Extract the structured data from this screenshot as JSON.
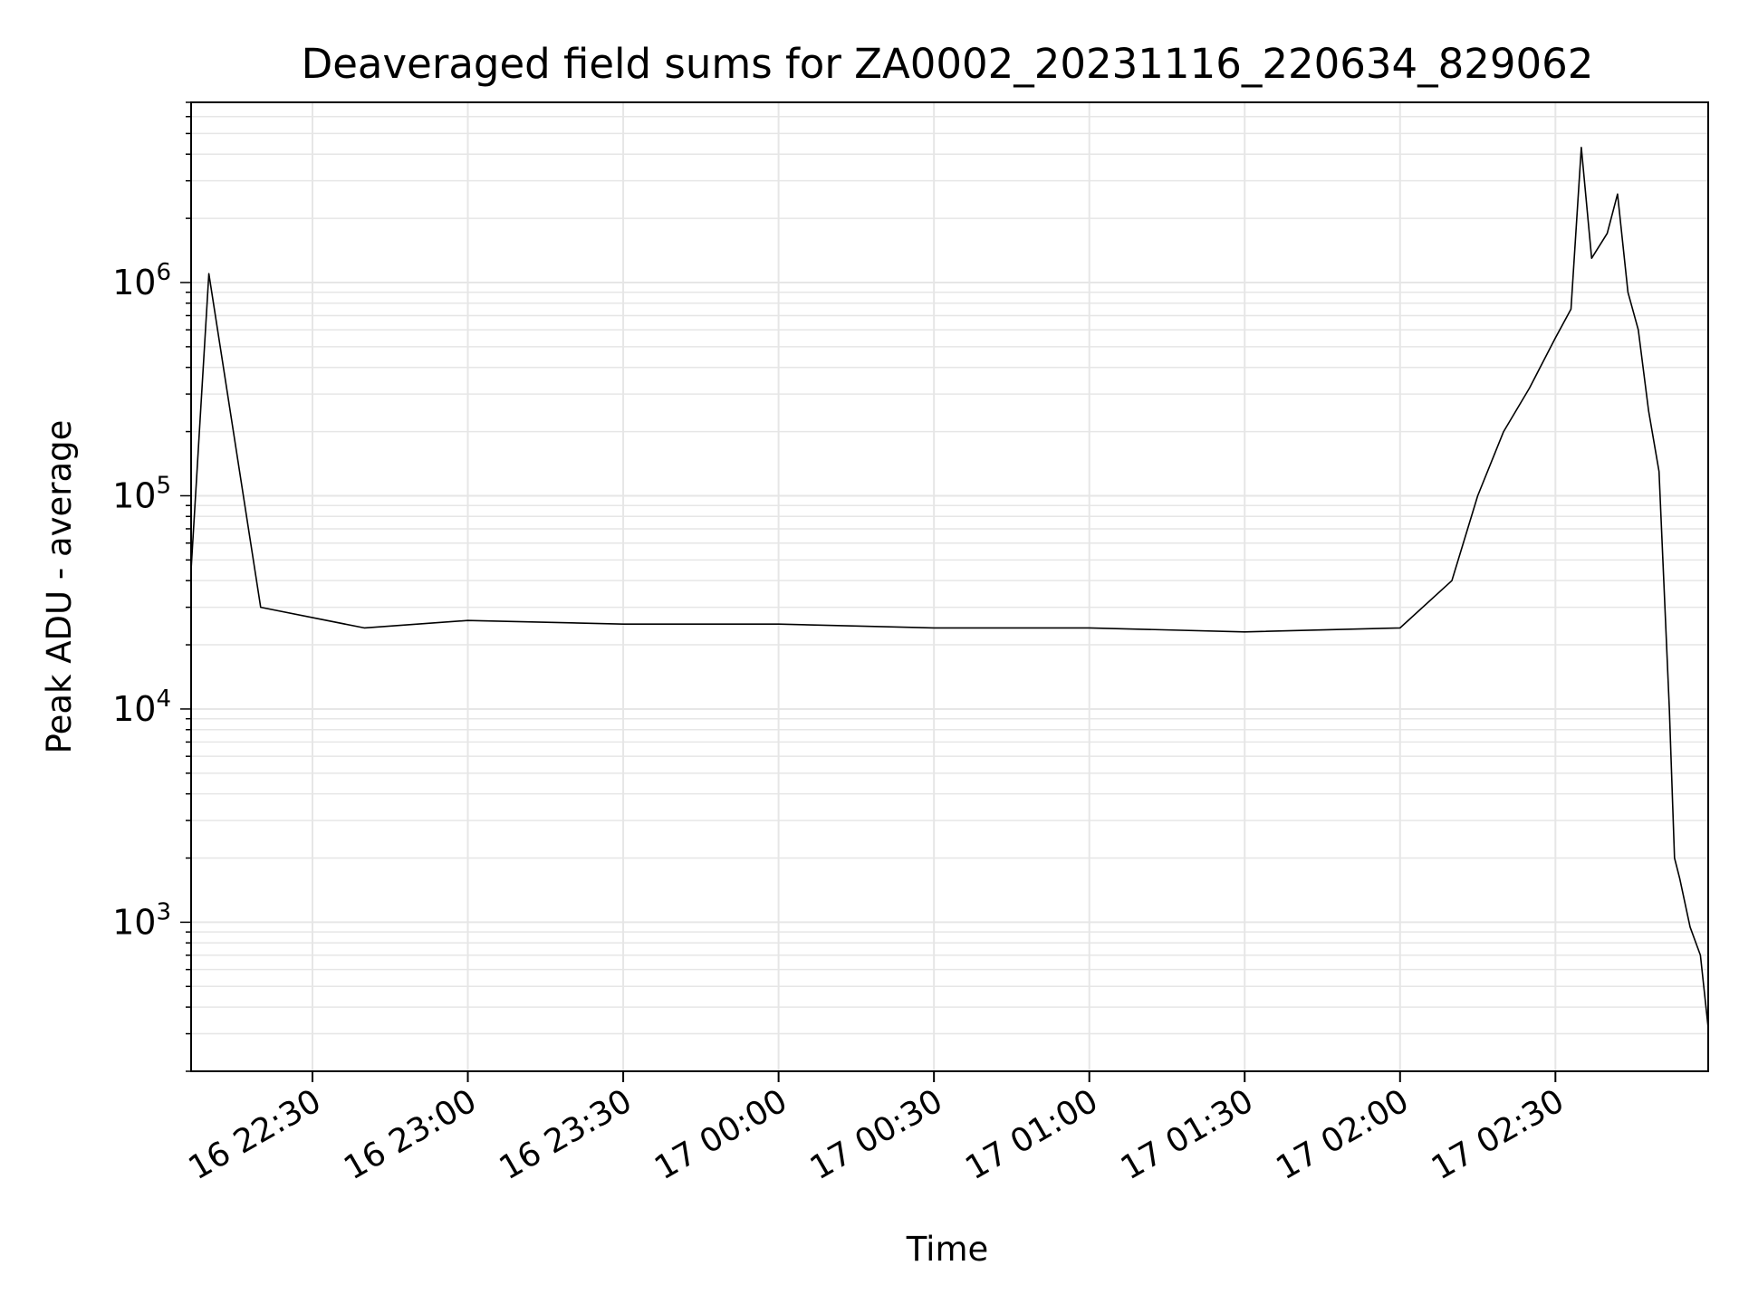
{
  "chart_data": {
    "type": "line",
    "title": "Deaveraged field sums for ZA0002_20231116_220634_829062",
    "xlabel": "Time",
    "ylabel": "Peak ADU - average",
    "x_range": [
      "2023-11-16 22:06:34",
      "2023-11-17 02:59:30"
    ],
    "ylim": [
      200,
      7000000
    ],
    "y_scale": "log",
    "grid": true,
    "line_color": "#000000",
    "grid_color": "#e6e6e6",
    "x_ticks": [
      {
        "label": "16 22:30",
        "time": "2023-11-16 22:30"
      },
      {
        "label": "16 23:00",
        "time": "2023-11-16 23:00"
      },
      {
        "label": "16 23:30",
        "time": "2023-11-16 23:30"
      },
      {
        "label": "17 00:00",
        "time": "2023-11-17 00:00"
      },
      {
        "label": "17 00:30",
        "time": "2023-11-17 00:30"
      },
      {
        "label": "17 01:00",
        "time": "2023-11-17 01:00"
      },
      {
        "label": "17 01:30",
        "time": "2023-11-17 01:30"
      },
      {
        "label": "17 02:00",
        "time": "2023-11-17 02:00"
      },
      {
        "label": "17 02:30",
        "time": "2023-11-17 02:30"
      }
    ],
    "y_ticks": [
      {
        "base": "10",
        "exp": "3",
        "value": 1000
      },
      {
        "base": "10",
        "exp": "4",
        "value": 10000
      },
      {
        "base": "10",
        "exp": "5",
        "value": 100000
      },
      {
        "base": "10",
        "exp": "6",
        "value": 1000000
      }
    ],
    "series": [
      {
        "points": [
          [
            "2023-11-16 22:06:34",
            45000
          ],
          [
            "2023-11-16 22:10:00",
            1100000
          ],
          [
            "2023-11-16 22:20:00",
            30000
          ],
          [
            "2023-11-16 22:40:00",
            24000
          ],
          [
            "2023-11-16 23:00:00",
            26000
          ],
          [
            "2023-11-16 23:30:00",
            25000
          ],
          [
            "2023-11-17 00:00:00",
            25000
          ],
          [
            "2023-11-17 00:30:00",
            24000
          ],
          [
            "2023-11-17 01:00:00",
            24000
          ],
          [
            "2023-11-17 01:30:00",
            23000
          ],
          [
            "2023-11-17 02:00:00",
            24000
          ],
          [
            "2023-11-17 02:10:00",
            40000
          ],
          [
            "2023-11-17 02:15:00",
            100000
          ],
          [
            "2023-11-17 02:20:00",
            200000
          ],
          [
            "2023-11-17 02:25:00",
            320000
          ],
          [
            "2023-11-17 02:30:00",
            550000
          ],
          [
            "2023-11-17 02:33:00",
            750000
          ],
          [
            "2023-11-17 02:35:00",
            4300000
          ],
          [
            "2023-11-17 02:37:00",
            1300000
          ],
          [
            "2023-11-17 02:40:00",
            1700000
          ],
          [
            "2023-11-17 02:42:00",
            2600000
          ],
          [
            "2023-11-17 02:44:00",
            900000
          ],
          [
            "2023-11-17 02:46:00",
            600000
          ],
          [
            "2023-11-17 02:48:00",
            250000
          ],
          [
            "2023-11-17 02:50:00",
            130000
          ],
          [
            "2023-11-17 02:52:00",
            10000
          ],
          [
            "2023-11-17 02:53:00",
            2000
          ],
          [
            "2023-11-17 02:54:00",
            1600
          ],
          [
            "2023-11-17 02:56:00",
            950
          ],
          [
            "2023-11-17 02:58:00",
            700
          ],
          [
            "2023-11-17 02:59:30",
            320
          ]
        ]
      }
    ]
  }
}
